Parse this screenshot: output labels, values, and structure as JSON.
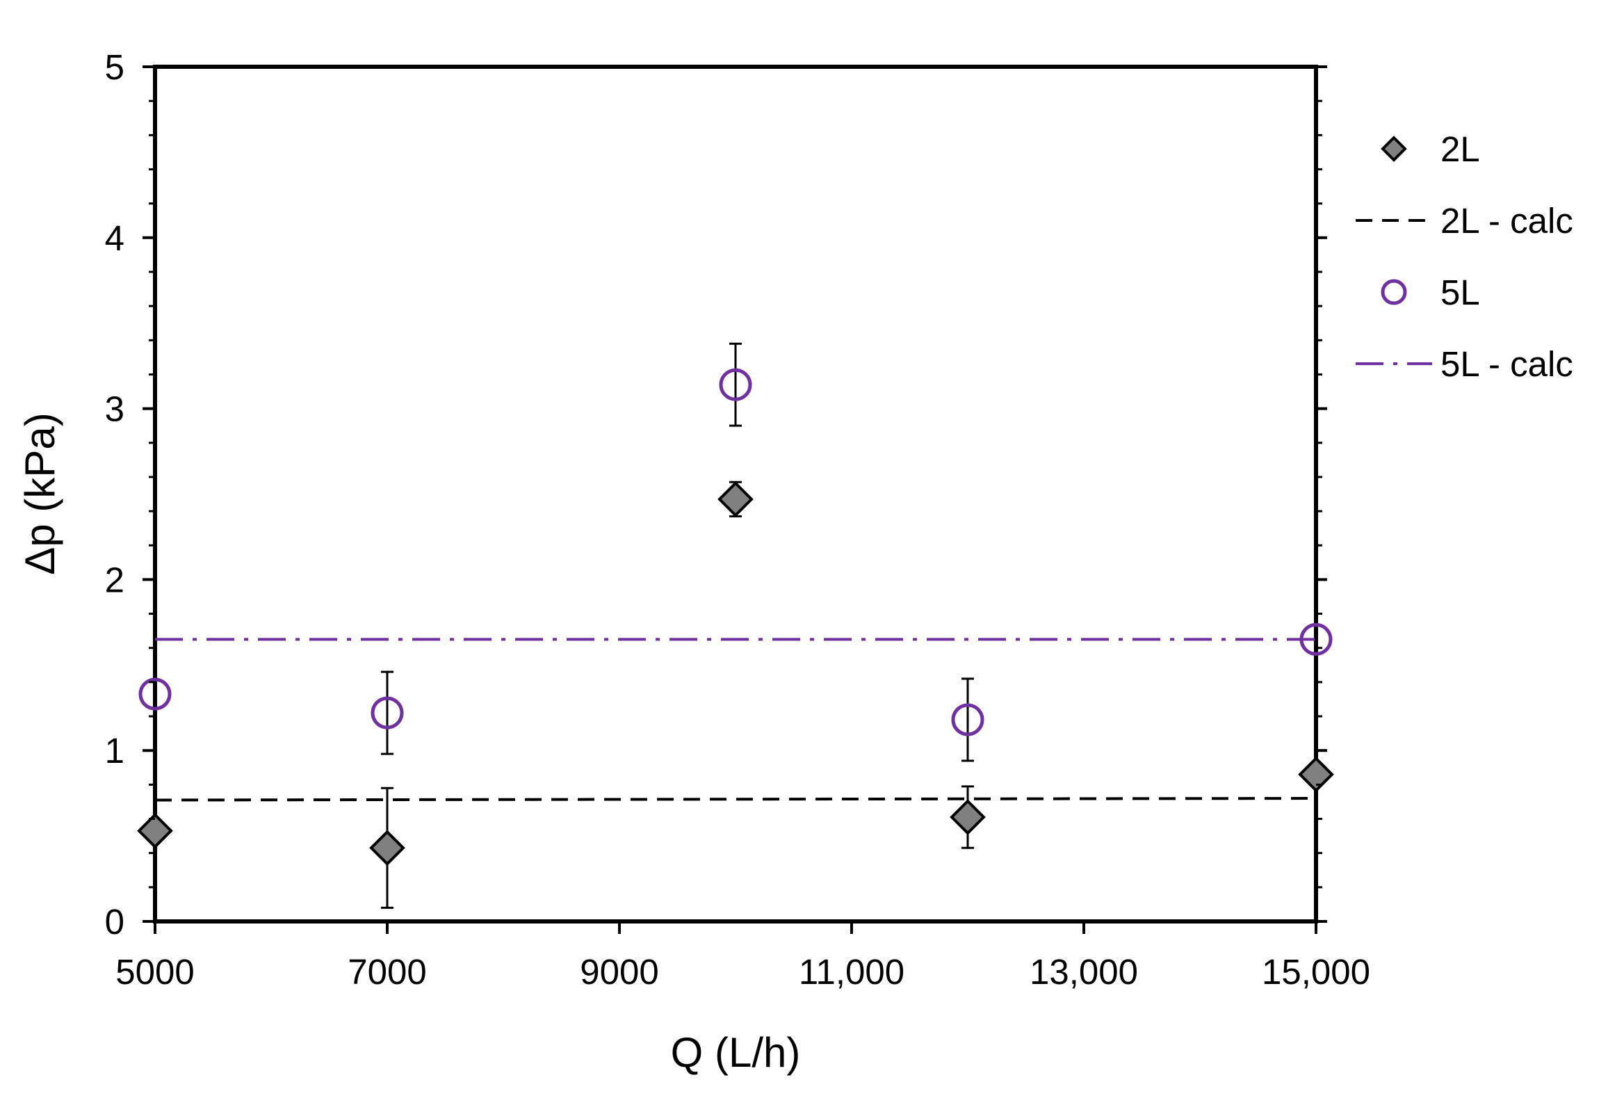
{
  "chart_data": {
    "type": "scatter",
    "xlabel": "Q (L/h)",
    "ylabel": "Δp (kPa)",
    "xlim": [
      5000,
      15000
    ],
    "ylim": [
      0,
      5
    ],
    "x_ticks": [
      5000,
      7000,
      9000,
      11000,
      13000,
      15000
    ],
    "x_tick_labels": [
      "5000",
      "7000",
      "9000",
      "11,000",
      "13,000",
      "15,000"
    ],
    "y_ticks": [
      0,
      1,
      2,
      3,
      4,
      5
    ],
    "y_tick_labels": [
      "0",
      "1",
      "2",
      "3",
      "4",
      "5"
    ],
    "y_minor_step": 0.2,
    "grid": false,
    "legend_position": "right",
    "series": [
      {
        "name": "2L",
        "kind": "points",
        "marker": "diamond",
        "color": "#808080",
        "edge_color": "#000000",
        "points": [
          {
            "x": 5000,
            "y": 0.53,
            "err": null
          },
          {
            "x": 7000,
            "y": 0.43,
            "err": 0.35
          },
          {
            "x": 10000,
            "y": 2.47,
            "err": 0.1
          },
          {
            "x": 12000,
            "y": 0.61,
            "err": 0.18
          },
          {
            "x": 15000,
            "y": 0.86,
            "err": null
          }
        ]
      },
      {
        "name": "2L - calc",
        "kind": "line",
        "style": "dashed",
        "color": "#000000",
        "x": [
          5000,
          15000
        ],
        "y": [
          0.71,
          0.72
        ]
      },
      {
        "name": "5L",
        "kind": "points",
        "marker": "circle-open",
        "color": "#7030A0",
        "points": [
          {
            "x": 5000,
            "y": 1.33,
            "err": null
          },
          {
            "x": 7000,
            "y": 1.22,
            "err": 0.24
          },
          {
            "x": 10000,
            "y": 3.14,
            "err": 0.24
          },
          {
            "x": 12000,
            "y": 1.18,
            "err": 0.24
          },
          {
            "x": 15000,
            "y": 1.65,
            "err": null
          }
        ]
      },
      {
        "name": "5L - calc",
        "kind": "line",
        "style": "dashdot",
        "color": "#7030A0",
        "x": [
          5000,
          15000
        ],
        "y": [
          1.65,
          1.65
        ]
      }
    ]
  }
}
